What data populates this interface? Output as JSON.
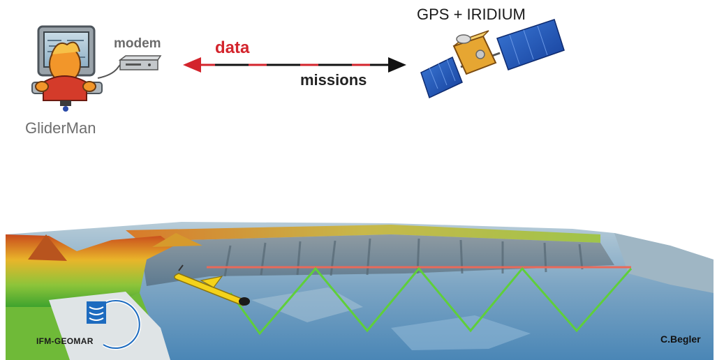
{
  "labels": {
    "modem": "modem",
    "data": "data",
    "missions": "missions",
    "gps_iridium": "GPS + IRIDIUM",
    "gliderman": "GliderMan",
    "logo_text": "IFM-GEOMAR",
    "credit": "C.Begler"
  },
  "colors": {
    "data_arrow": "#d3242c",
    "mission_arrow": "#111111",
    "glider_path": "#5fcf3a",
    "surface_line": "#e86a5a",
    "glider_body": "#f4d21a"
  },
  "icons": [
    "gliderman-computer-icon",
    "modem-icon",
    "satellite-icon",
    "glider-icon",
    "ifm-geomar-logo"
  ]
}
